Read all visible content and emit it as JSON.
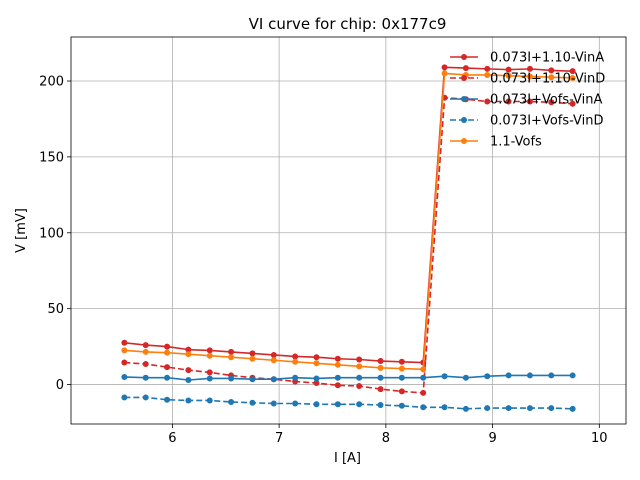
{
  "chart_data": {
    "type": "line",
    "title": "VI curve for chip: 0x177c9",
    "xlabel": "I [A]",
    "ylabel": "V [mV]",
    "xlim": [
      5.05,
      10.25
    ],
    "ylim": [
      -26,
      229
    ],
    "xticks": [
      6,
      7,
      8,
      9,
      10
    ],
    "yticks": [
      0,
      50,
      100,
      150,
      200
    ],
    "grid": true,
    "legend_position": "top-right",
    "x": [
      5.55,
      5.75,
      5.95,
      6.15,
      6.35,
      6.55,
      6.75,
      6.95,
      7.15,
      7.35,
      7.55,
      7.75,
      7.95,
      8.15,
      8.35,
      8.55,
      8.75,
      8.95,
      9.15,
      9.35,
      9.55,
      9.75
    ],
    "series": [
      {
        "name": "0.073I+1.10-VinA",
        "color": "#d62728",
        "linestyle": "solid",
        "values": [
          27.5,
          26,
          25,
          23,
          22.5,
          21.5,
          20.5,
          19.5,
          18.5,
          18,
          17,
          16.5,
          15.5,
          15,
          14.5,
          209,
          208.5,
          208,
          207.5,
          208,
          207,
          206.5
        ]
      },
      {
        "name": "0.073I+1.10-VinD",
        "color": "#d62728",
        "linestyle": "dashed",
        "values": [
          14.5,
          13.5,
          11.5,
          9.5,
          8,
          6,
          4.5,
          3.5,
          2,
          1,
          -0.5,
          -1,
          -3,
          -4.5,
          -5.5,
          189,
          188,
          186.5,
          186.5,
          186.5,
          186,
          185
        ]
      },
      {
        "name": "0.073I+Vofs-VinA",
        "color": "#1f77b4",
        "linestyle": "solid",
        "values": [
          5,
          4.5,
          4.5,
          3,
          4,
          4,
          3.5,
          3.5,
          4.5,
          4,
          4.5,
          4.5,
          4.5,
          4.5,
          4.5,
          5.5,
          4.5,
          5.5,
          6,
          6,
          6,
          6
        ]
      },
      {
        "name": "0.073I+Vofs-VinD",
        "color": "#1f77b4",
        "linestyle": "dashed",
        "values": [
          -8.5,
          -8.5,
          -10,
          -10.5,
          -10.5,
          -11.5,
          -12,
          -12.5,
          -12.5,
          -13,
          -13,
          -13,
          -13.5,
          -14,
          -15,
          -15,
          -16,
          -15.5,
          -15.5,
          -15.5,
          -15.5,
          -16
        ]
      },
      {
        "name": "1.1-Vofs",
        "color": "#ff7f0e",
        "linestyle": "solid",
        "values": [
          22.5,
          21.5,
          21,
          20,
          19,
          18,
          17,
          16,
          15,
          14,
          13,
          12,
          11,
          10.5,
          10,
          205,
          204,
          204,
          203.5,
          203,
          202.5,
          202
        ]
      }
    ]
  }
}
